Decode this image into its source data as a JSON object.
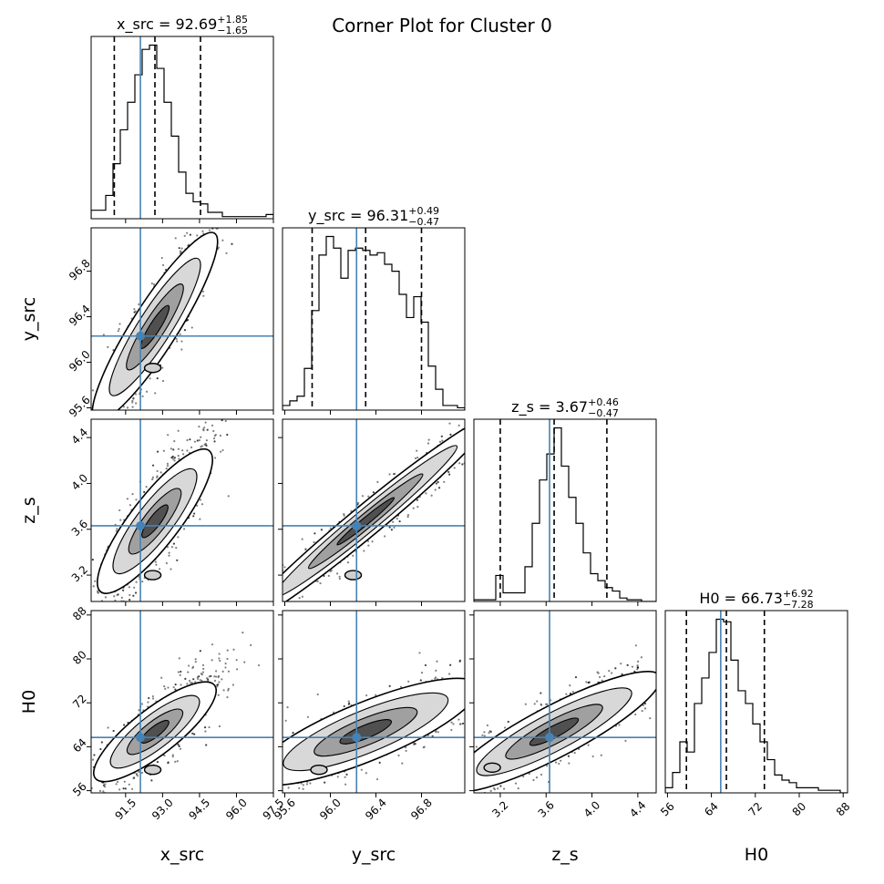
{
  "figure": {
    "title": "Corner Plot for Cluster 0"
  },
  "chart_data": {
    "type": "corner",
    "title": "Corner Plot for Cluster 0",
    "parameters": [
      {
        "name": "x_src",
        "label": "x_src",
        "range": [
          90.1,
          97.5
        ],
        "ticks": [
          91.5,
          93.0,
          94.5,
          96.0,
          97.5
        ],
        "tick_labels": [
          "91.5",
          "93.0",
          "94.5",
          "96.0",
          "97.5"
        ],
        "truth": 92.1,
        "quantiles": [
          91.04,
          92.69,
          94.54
        ],
        "summary": {
          "median": "92.69",
          "plus": "+1.85",
          "minus": "−1.65"
        },
        "hist_counts": [
          4,
          4,
          11,
          26,
          42,
          55,
          68,
          80,
          82,
          71,
          55,
          39,
          22,
          12,
          8,
          7,
          3,
          3,
          1,
          1,
          1,
          1,
          1,
          1,
          2
        ]
      },
      {
        "name": "y_src",
        "label": "y_src",
        "range": [
          95.58,
          97.18
        ],
        "ticks": [
          95.6,
          96.0,
          96.4,
          96.8
        ],
        "tick_labels": [
          "95.6",
          "96.0",
          "96.4",
          "96.8"
        ],
        "truth": 96.23,
        "quantiles": [
          95.84,
          96.31,
          96.8
        ],
        "summary": {
          "median": "96.31",
          "plus": "+0.49",
          "minus": "−0.47"
        },
        "hist_counts": [
          2,
          4,
          6,
          18,
          43,
          67,
          75,
          70,
          57,
          69,
          70,
          69,
          67,
          68,
          63,
          60,
          50,
          40,
          49,
          38,
          19,
          9,
          2,
          2,
          1
        ]
      },
      {
        "name": "z_s",
        "label": "z_s",
        "range": [
          2.97,
          4.56
        ],
        "ticks": [
          3.2,
          3.6,
          4.0,
          4.4
        ],
        "tick_labels": [
          "3.2",
          "3.6",
          "4.0",
          "4.4"
        ],
        "truth": 3.63,
        "quantiles": [
          3.2,
          3.67,
          4.13
        ],
        "summary": {
          "median": "3.67",
          "plus": "+0.46",
          "minus": "−0.47"
        },
        "hist_counts": [
          1,
          1,
          1,
          15,
          5,
          5,
          5,
          20,
          45,
          70,
          85,
          100,
          78,
          60,
          45,
          28,
          16,
          12,
          8,
          6,
          2,
          1,
          1,
          0,
          0
        ]
      },
      {
        "name": "H0",
        "label": "H0",
        "range": [
          55.6,
          88.8
        ],
        "ticks": [
          56,
          64,
          72,
          80,
          88
        ],
        "tick_labels": [
          "56",
          "64",
          "72",
          "80",
          "88"
        ],
        "truth": 65.7,
        "quantiles": [
          59.45,
          66.73,
          73.65
        ],
        "summary": {
          "median": "66.73",
          "plus": "+6.92",
          "minus": "−7.28"
        },
        "hist_counts": [
          2,
          8,
          20,
          16,
          35,
          45,
          55,
          68,
          67,
          52,
          40,
          35,
          27,
          20,
          13,
          7,
          5,
          4,
          2,
          2,
          2,
          1,
          1,
          1,
          0
        ]
      }
    ],
    "truth_color": "#4682b4",
    "quantile_line_style": "dashed",
    "pairs": [
      {
        "x": "x_src",
        "y": "y_src",
        "slope": 0.34,
        "spread_along": 1.1,
        "spread_across": 0.17,
        "blob": {
          "x": 92.6,
          "y": 95.95
        }
      },
      {
        "x": "x_src",
        "y": "z_s",
        "slope": 0.28,
        "spread_along": 1.0,
        "spread_across": 0.16,
        "blob": {
          "x": 92.6,
          "y": 3.2
        }
      },
      {
        "x": "y_src",
        "y": "z_s",
        "slope": 0.82,
        "spread_along": 0.5,
        "spread_across": 0.08,
        "blob": {
          "x": 96.2,
          "y": 3.2
        }
      },
      {
        "x": "x_src",
        "y": "H0",
        "slope": 3.5,
        "spread_along": 1.1,
        "spread_across": 2.4,
        "blob": {
          "x": 92.6,
          "y": 59.8
        }
      },
      {
        "x": "y_src",
        "y": "H0",
        "slope": 8.5,
        "spread_along": 0.45,
        "spread_across": 2.6,
        "blob": {
          "x": 95.9,
          "y": 59.8
        }
      },
      {
        "x": "z_s",
        "y": "H0",
        "slope": 11.0,
        "spread_along": 0.42,
        "spread_across": 2.4,
        "blob": {
          "x": 3.13,
          "y": 60.2
        }
      }
    ]
  }
}
